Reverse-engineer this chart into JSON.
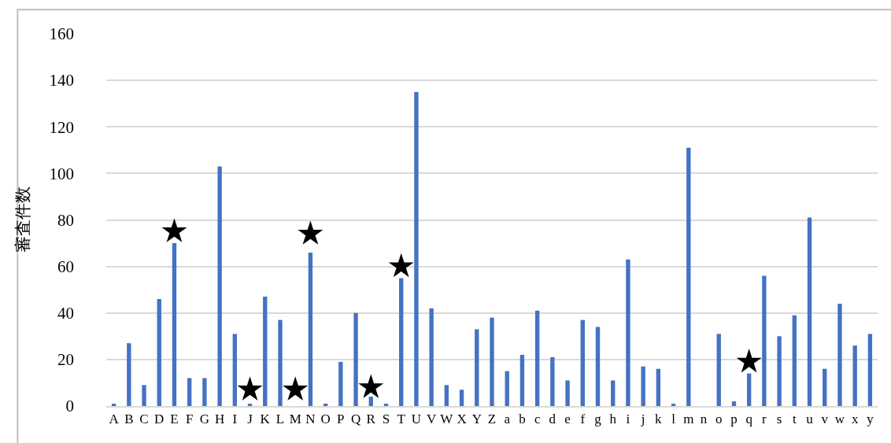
{
  "chart_data": {
    "type": "bar",
    "ylabel": "審査件数",
    "categories": [
      "A",
      "B",
      "C",
      "D",
      "E",
      "F",
      "G",
      "H",
      "I",
      "J",
      "K",
      "L",
      "M",
      "N",
      "O",
      "P",
      "Q",
      "R",
      "S",
      "T",
      "U",
      "V",
      "W",
      "X",
      "Y",
      "Z",
      "a",
      "b",
      "c",
      "d",
      "e",
      "f",
      "g",
      "h",
      "i",
      "j",
      "k",
      "l",
      "m",
      "n",
      "o",
      "p",
      "q",
      "r",
      "s",
      "t",
      "u",
      "v",
      "w",
      "x",
      "y"
    ],
    "series": [
      {
        "color": "#4472c4",
        "values": [
          1,
          27,
          9,
          46,
          70,
          12,
          12,
          103,
          31,
          1,
          47,
          37,
          0,
          66,
          1,
          19,
          40,
          4,
          1,
          55,
          135,
          42,
          9,
          7,
          33,
          38,
          15,
          22,
          41,
          21,
          11,
          37,
          34,
          11,
          63,
          17,
          16,
          1,
          111,
          0,
          31,
          2,
          14,
          56,
          30,
          39,
          81,
          16,
          44,
          26,
          31
        ]
      },
      {
        "type": "scatter",
        "color": "#000000",
        "marker": "star",
        "x": [
          "E",
          "J",
          "M",
          "N",
          "R",
          "T",
          "q"
        ],
        "values": [
          75,
          7,
          7,
          74,
          8,
          60,
          19
        ]
      }
    ],
    "ylim": [
      0,
      160
    ],
    "yticks": [
      0,
      20,
      40,
      60,
      80,
      100,
      120,
      140,
      160
    ],
    "grid": "y"
  }
}
